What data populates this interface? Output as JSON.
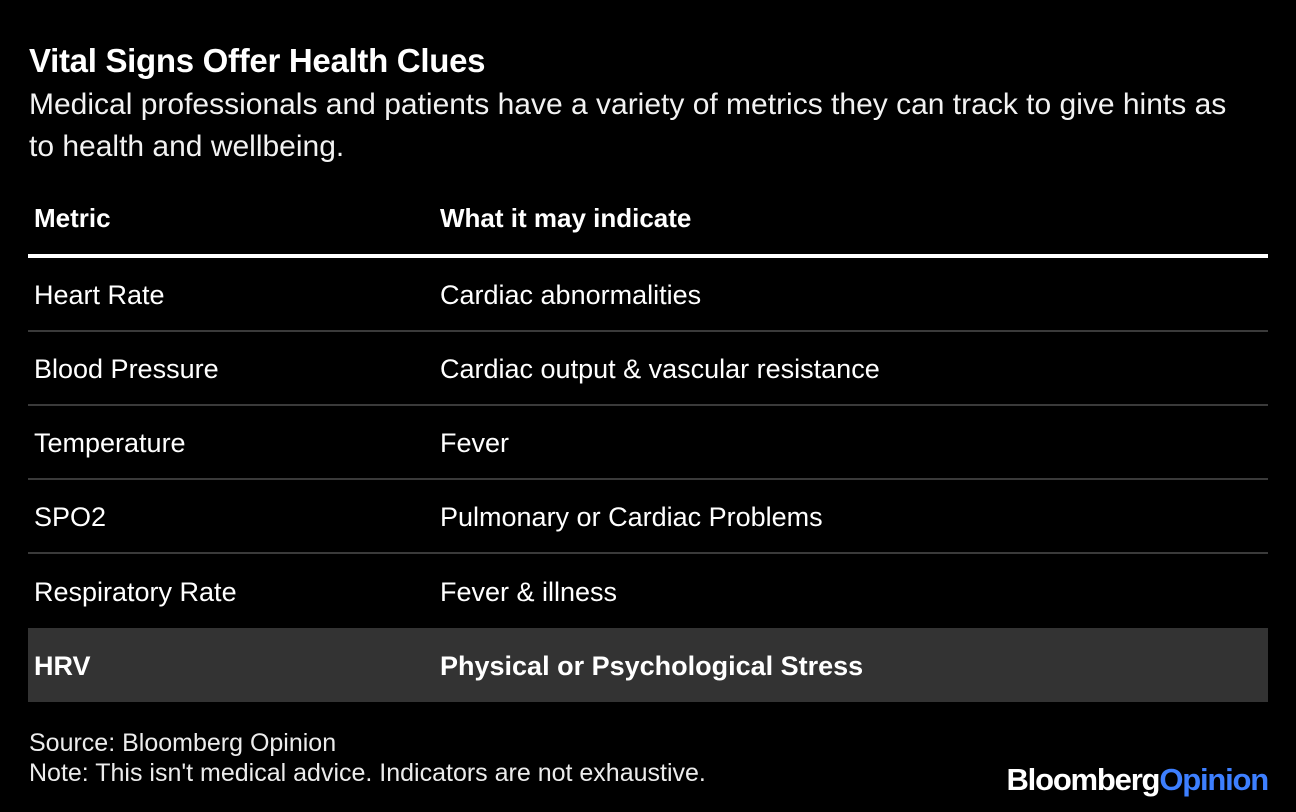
{
  "header": {
    "title": "Vital Signs Offer Health Clues",
    "subtitle": "Medical professionals and patients have a variety of metrics they can track to give hints as to health and wellbeing."
  },
  "table": {
    "columns": [
      "Metric",
      "What it may indicate"
    ],
    "rows": [
      {
        "metric": "Heart Rate",
        "indication": "Cardiac abnormalities",
        "highlighted": false
      },
      {
        "metric": "Blood Pressure",
        "indication": "Cardiac output & vascular resistance",
        "highlighted": false
      },
      {
        "metric": "Temperature",
        "indication": "Fever",
        "highlighted": false
      },
      {
        "metric": "SPO2",
        "indication": "Pulmonary or Cardiac Problems",
        "highlighted": false
      },
      {
        "metric": "Respiratory Rate",
        "indication": "Fever & illness",
        "highlighted": false
      },
      {
        "metric": "HRV",
        "indication": "Physical or Psychological Stress",
        "highlighted": true
      }
    ]
  },
  "footer": {
    "source": "Source: Bloomberg Opinion",
    "note": "Note: This isn't medical advice. Indicators are not exhaustive."
  },
  "brand": {
    "part1": "Bloomberg",
    "part2": "Opinion"
  },
  "colors": {
    "background": "#000000",
    "text": "#ffffff",
    "highlight_row": "#333333",
    "brand_accent": "#3d7fff"
  }
}
